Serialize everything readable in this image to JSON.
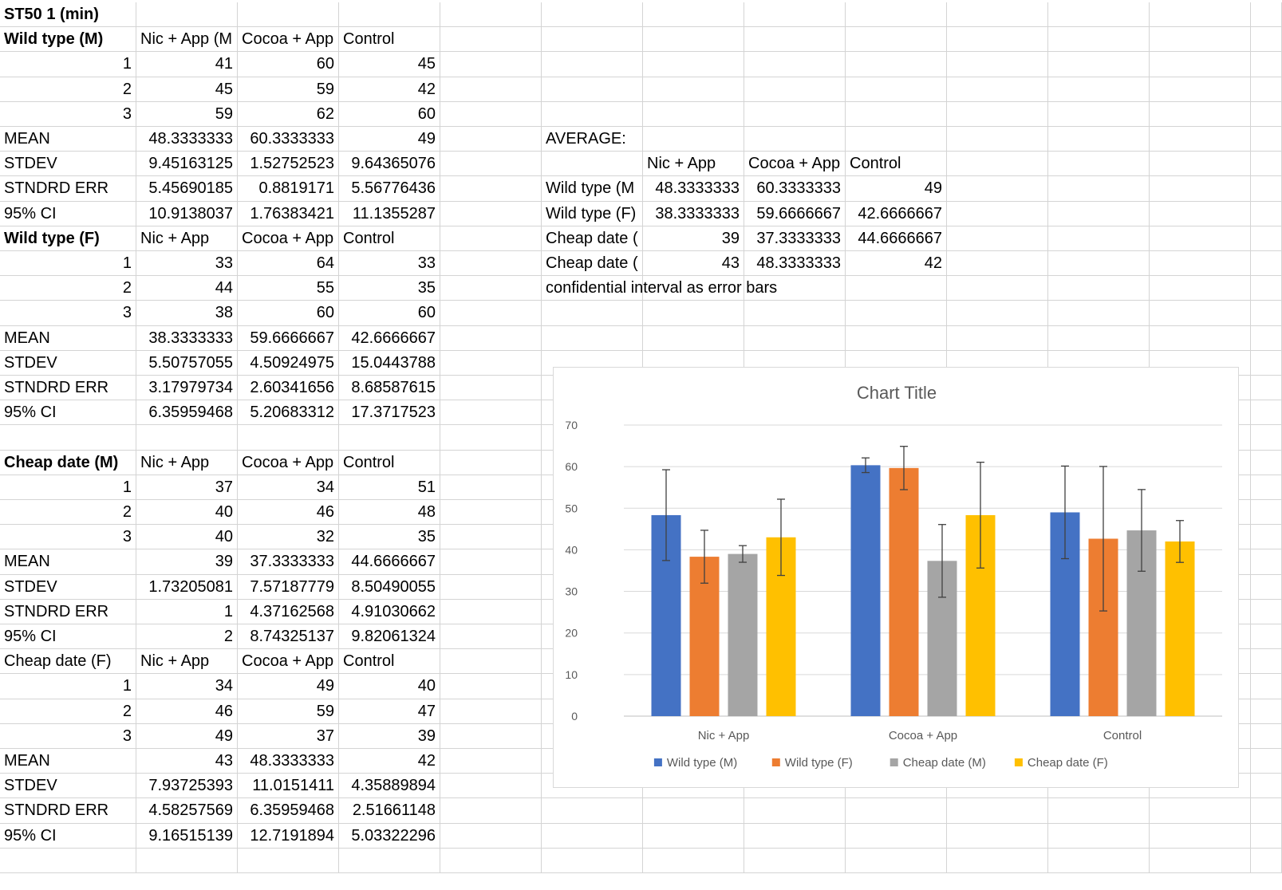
{
  "sheet": {
    "rows": [
      [
        {
          "t": "ST50 1 (min)",
          "b": 1
        }
      ],
      [
        {
          "t": "Wild type (M)",
          "b": 1
        },
        {
          "t": "Nic + App (M"
        },
        {
          "t": "Cocoa + App"
        },
        {
          "t": "Control"
        }
      ],
      [
        {
          "t": "1",
          "n": 1
        },
        {
          "t": "41",
          "n": 1
        },
        {
          "t": "60",
          "n": 1
        },
        {
          "t": "45",
          "n": 1
        }
      ],
      [
        {
          "t": "2",
          "n": 1
        },
        {
          "t": "45",
          "n": 1
        },
        {
          "t": "59",
          "n": 1
        },
        {
          "t": "42",
          "n": 1
        }
      ],
      [
        {
          "t": "3",
          "n": 1
        },
        {
          "t": "59",
          "n": 1
        },
        {
          "t": "62",
          "n": 1
        },
        {
          "t": "60",
          "n": 1
        }
      ],
      [
        {
          "t": "MEAN"
        },
        {
          "t": "48.3333333",
          "n": 1
        },
        {
          "t": "60.3333333",
          "n": 1
        },
        {
          "t": "49",
          "n": 1
        },
        {},
        {
          "t": "AVERAGE:"
        }
      ],
      [
        {
          "t": "STDEV"
        },
        {
          "t": "9.45163125",
          "n": 1
        },
        {
          "t": "1.52752523",
          "n": 1
        },
        {
          "t": "9.64365076",
          "n": 1
        },
        {},
        {},
        {
          "t": "Nic + App"
        },
        {
          "t": "Cocoa + App"
        },
        {
          "t": "Control"
        }
      ],
      [
        {
          "t": "STNDRD ERR"
        },
        {
          "t": "5.45690185",
          "n": 1
        },
        {
          "t": "0.8819171",
          "n": 1
        },
        {
          "t": "5.56776436",
          "n": 1
        },
        {},
        {
          "t": "Wild type (M"
        },
        {
          "t": "48.3333333",
          "n": 1
        },
        {
          "t": "60.3333333",
          "n": 1
        },
        {
          "t": "49",
          "n": 1
        }
      ],
      [
        {
          "t": "95% CI"
        },
        {
          "t": "10.9138037",
          "n": 1
        },
        {
          "t": "1.76383421",
          "n": 1
        },
        {
          "t": "11.1355287",
          "n": 1
        },
        {},
        {
          "t": "Wild type (F)"
        },
        {
          "t": "38.3333333",
          "n": 1
        },
        {
          "t": "59.6666667",
          "n": 1
        },
        {
          "t": "42.6666667",
          "n": 1
        }
      ],
      [
        {
          "t": "Wild type (F)",
          "b": 1
        },
        {
          "t": "Nic + App"
        },
        {
          "t": "Cocoa + App"
        },
        {
          "t": "Control"
        },
        {},
        {
          "t": "Cheap date ("
        },
        {
          "t": "39",
          "n": 1
        },
        {
          "t": "37.3333333",
          "n": 1
        },
        {
          "t": "44.6666667",
          "n": 1
        }
      ],
      [
        {
          "t": "1",
          "n": 1
        },
        {
          "t": "33",
          "n": 1
        },
        {
          "t": "64",
          "n": 1
        },
        {
          "t": "33",
          "n": 1
        },
        {},
        {
          "t": "Cheap date ("
        },
        {
          "t": "43",
          "n": 1
        },
        {
          "t": "48.3333333",
          "n": 1
        },
        {
          "t": "42",
          "n": 1
        }
      ],
      [
        {
          "t": "2",
          "n": 1
        },
        {
          "t": "44",
          "n": 1
        },
        {
          "t": "55",
          "n": 1
        },
        {
          "t": "35",
          "n": 1
        },
        {},
        {
          "t": "confidential interval as error bars",
          "s": 1
        }
      ],
      [
        {
          "t": "3",
          "n": 1
        },
        {
          "t": "38",
          "n": 1
        },
        {
          "t": "60",
          "n": 1
        },
        {
          "t": "60",
          "n": 1
        }
      ],
      [
        {
          "t": "MEAN"
        },
        {
          "t": "38.3333333",
          "n": 1
        },
        {
          "t": "59.6666667",
          "n": 1
        },
        {
          "t": "42.6666667",
          "n": 1
        }
      ],
      [
        {
          "t": "STDEV"
        },
        {
          "t": "5.50757055",
          "n": 1
        },
        {
          "t": "4.50924975",
          "n": 1
        },
        {
          "t": "15.0443788",
          "n": 1
        }
      ],
      [
        {
          "t": "STNDRD ERR"
        },
        {
          "t": "3.17979734",
          "n": 1
        },
        {
          "t": "2.60341656",
          "n": 1
        },
        {
          "t": "8.68587615",
          "n": 1
        }
      ],
      [
        {
          "t": "95% CI"
        },
        {
          "t": "6.35959468",
          "n": 1
        },
        {
          "t": "5.20683312",
          "n": 1
        },
        {
          "t": "17.3717523",
          "n": 1
        }
      ],
      [],
      [
        {
          "t": "Cheap date (M)",
          "b": 1
        },
        {
          "t": "Nic + App"
        },
        {
          "t": "Cocoa + App"
        },
        {
          "t": "Control"
        }
      ],
      [
        {
          "t": "1",
          "n": 1
        },
        {
          "t": "37",
          "n": 1
        },
        {
          "t": "34",
          "n": 1
        },
        {
          "t": "51",
          "n": 1
        }
      ],
      [
        {
          "t": "2",
          "n": 1
        },
        {
          "t": "40",
          "n": 1
        },
        {
          "t": "46",
          "n": 1
        },
        {
          "t": "48",
          "n": 1
        }
      ],
      [
        {
          "t": "3",
          "n": 1
        },
        {
          "t": "40",
          "n": 1
        },
        {
          "t": "32",
          "n": 1
        },
        {
          "t": "35",
          "n": 1
        }
      ],
      [
        {
          "t": "MEAN"
        },
        {
          "t": "39",
          "n": 1
        },
        {
          "t": "37.3333333",
          "n": 1
        },
        {
          "t": "44.6666667",
          "n": 1
        }
      ],
      [
        {
          "t": "STDEV"
        },
        {
          "t": "1.73205081",
          "n": 1
        },
        {
          "t": "7.57187779",
          "n": 1
        },
        {
          "t": "8.50490055",
          "n": 1
        }
      ],
      [
        {
          "t": "STNDRD ERR"
        },
        {
          "t": "1",
          "n": 1
        },
        {
          "t": "4.37162568",
          "n": 1
        },
        {
          "t": "4.91030662",
          "n": 1
        }
      ],
      [
        {
          "t": "95% CI"
        },
        {
          "t": "2",
          "n": 1
        },
        {
          "t": "8.74325137",
          "n": 1
        },
        {
          "t": "9.82061324",
          "n": 1
        }
      ],
      [
        {
          "t": "Cheap date (F)"
        },
        {
          "t": "Nic + App"
        },
        {
          "t": "Cocoa + App"
        },
        {
          "t": "Control"
        }
      ],
      [
        {
          "t": "1",
          "n": 1
        },
        {
          "t": "34",
          "n": 1
        },
        {
          "t": "49",
          "n": 1
        },
        {
          "t": "40",
          "n": 1
        }
      ],
      [
        {
          "t": "2",
          "n": 1
        },
        {
          "t": "46",
          "n": 1
        },
        {
          "t": "59",
          "n": 1
        },
        {
          "t": "47",
          "n": 1
        }
      ],
      [
        {
          "t": "3",
          "n": 1
        },
        {
          "t": "49",
          "n": 1
        },
        {
          "t": "37",
          "n": 1
        },
        {
          "t": "39",
          "n": 1
        }
      ],
      [
        {
          "t": "MEAN"
        },
        {
          "t": "43",
          "n": 1
        },
        {
          "t": "48.3333333",
          "n": 1
        },
        {
          "t": "42",
          "n": 1
        }
      ],
      [
        {
          "t": "STDEV"
        },
        {
          "t": "7.93725393",
          "n": 1
        },
        {
          "t": "11.0151411",
          "n": 1
        },
        {
          "t": "4.35889894",
          "n": 1
        }
      ],
      [
        {
          "t": "STNDRD ERR"
        },
        {
          "t": "4.58257569",
          "n": 1
        },
        {
          "t": "6.35959468",
          "n": 1
        },
        {
          "t": "2.51661148",
          "n": 1
        }
      ],
      [
        {
          "t": "95% CI"
        },
        {
          "t": "9.16515139",
          "n": 1
        },
        {
          "t": "12.7191894",
          "n": 1
        },
        {
          "t": "5.03322296",
          "n": 1
        }
      ],
      []
    ]
  },
  "chart_data": {
    "type": "bar",
    "title": "Chart Title",
    "categories": [
      "Nic + App",
      "Cocoa + App",
      "Control"
    ],
    "series": [
      {
        "name": "Wild type (M)",
        "color": "#4472c4",
        "values": [
          48.3333333,
          60.3333333,
          49
        ],
        "error": [
          10.9138037,
          1.76383421,
          11.1355287
        ]
      },
      {
        "name": "Wild type (F)",
        "color": "#ed7d31",
        "values": [
          38.3333333,
          59.6666667,
          42.6666667
        ],
        "error": [
          6.35959468,
          5.20683312,
          17.3717523
        ]
      },
      {
        "name": "Cheap date (M)",
        "color": "#a5a5a5",
        "values": [
          39,
          37.3333333,
          44.6666667
        ],
        "error": [
          2,
          8.74325137,
          9.82061324
        ]
      },
      {
        "name": "Cheap date (F)",
        "color": "#ffc000",
        "values": [
          43,
          48.3333333,
          42
        ],
        "error": [
          9.16515139,
          12.7191894,
          5.03322296
        ]
      }
    ],
    "ylim": [
      0,
      70
    ],
    "yticks": [
      0,
      10,
      20,
      30,
      40,
      50,
      60,
      70
    ],
    "grid": true,
    "legend": "bottom"
  }
}
